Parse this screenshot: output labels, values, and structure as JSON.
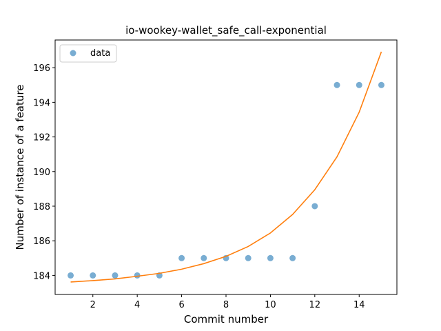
{
  "chart_data": {
    "type": "scatter",
    "title": "io-wookey-wallet_safe_call-exponential",
    "xlabel": "Commit number",
    "ylabel": "Number of instance of a feature",
    "xlim": [
      0.3,
      15.7
    ],
    "ylim": [
      182.9,
      197.6
    ],
    "x_ticks": [
      2,
      4,
      6,
      8,
      10,
      12,
      14
    ],
    "y_ticks": [
      184,
      186,
      188,
      190,
      192,
      194,
      196
    ],
    "grid": false,
    "legend_position": "upper left",
    "series": [
      {
        "name": "data",
        "kind": "scatter",
        "color": "#1f77b4",
        "x": [
          1,
          2,
          3,
          4,
          5,
          6,
          7,
          8,
          9,
          10,
          11,
          12,
          13,
          14,
          15
        ],
        "y": [
          184,
          184,
          184,
          184,
          184,
          185,
          185,
          185,
          185,
          185,
          185,
          188,
          195,
          195,
          195
        ]
      },
      {
        "kind": "line",
        "color": "#ff7f0e",
        "x": [
          1,
          2,
          3,
          4,
          5,
          6,
          7,
          8,
          9,
          10,
          11,
          12,
          13,
          14,
          15
        ],
        "y": [
          183.62,
          183.7,
          183.8,
          183.95,
          184.12,
          184.36,
          184.68,
          185.1,
          185.67,
          186.45,
          187.52,
          188.95,
          190.85,
          193.43,
          196.92
        ]
      }
    ]
  }
}
